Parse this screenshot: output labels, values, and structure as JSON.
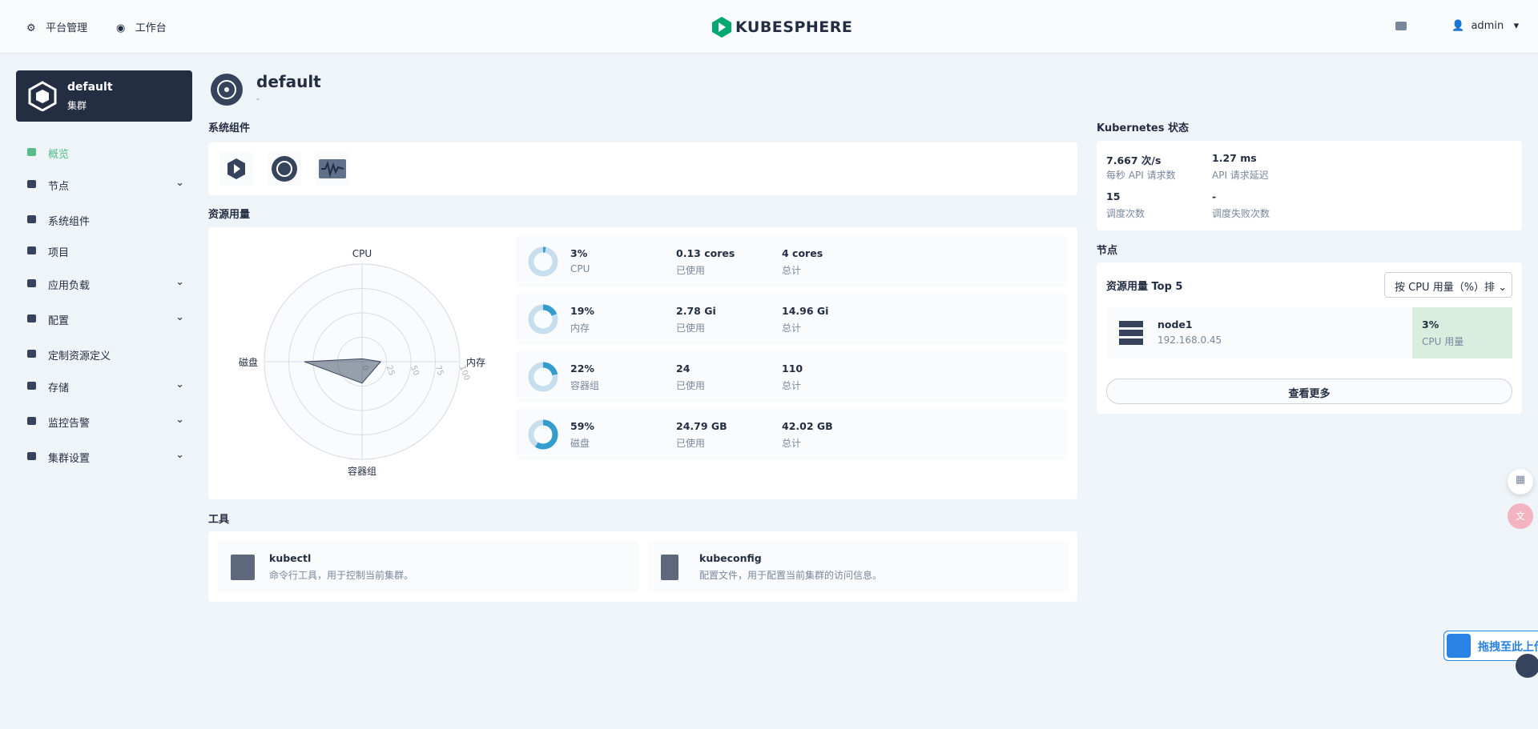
{
  "topbar": {
    "nav": [
      "平台管理",
      "工作台"
    ],
    "logo": "KUBESPHERE",
    "user": "admin"
  },
  "sidebar": {
    "cluster_name": "default",
    "cluster_type": "集群",
    "menu": [
      "概览",
      "节点",
      "系统组件",
      "项目",
      "应用负载",
      "配置",
      "定制资源定义",
      "存储",
      "监控告警",
      "集群设置"
    ]
  },
  "header": {
    "title": "default",
    "subtitle": "-"
  },
  "system_components": {
    "title": "系统组件"
  },
  "resource_usage": {
    "title": "资源用量",
    "radar_ticks": [
      0,
      25,
      50,
      75,
      100
    ],
    "items": [
      {
        "name": "CPU",
        "percent": 3,
        "percent_label": "3%",
        "used": "0.13 cores",
        "used_label": "已使用",
        "total": "4 cores",
        "total_label": "总计"
      },
      {
        "name": "内存",
        "percent": 19,
        "percent_label": "19%",
        "used": "2.78 Gi",
        "used_label": "已使用",
        "total": "14.96 Gi",
        "total_label": "总计"
      },
      {
        "name": "容器组",
        "percent": 22,
        "percent_label": "22%",
        "used": "24",
        "used_label": "已使用",
        "total": "110",
        "total_label": "总计"
      },
      {
        "name": "磁盘",
        "percent": 59,
        "percent_label": "59%",
        "used": "24.79 GB",
        "used_label": "已使用",
        "total": "42.02 GB",
        "total_label": "总计"
      }
    ]
  },
  "tools": {
    "title": "工具",
    "items": [
      {
        "name": "kubectl",
        "desc": "命令行工具，用于控制当前集群。"
      },
      {
        "name": "kubeconfig",
        "desc": "配置文件，用于配置当前集群的访问信息。"
      }
    ]
  },
  "kubernetes_status": {
    "title": "Kubernetes 状态",
    "metrics": [
      {
        "value": "7.667 次/s",
        "label": "每秒 API 请求数"
      },
      {
        "value": "1.27 ms",
        "label": "API 请求延迟"
      },
      {
        "value": "15",
        "label": "调度次数"
      },
      {
        "value": "-",
        "label": "调度失败次数"
      }
    ]
  },
  "nodes": {
    "title": "节点",
    "top_title": "资源用量 Top 5",
    "sort": "按 CPU 用量（%）排",
    "list": [
      {
        "name": "node1",
        "ip": "192.168.0.45",
        "usage": "3%",
        "metric": "CPU 用量"
      }
    ],
    "more": "查看更多"
  },
  "upload": {
    "label": "拖拽至此上传"
  }
}
